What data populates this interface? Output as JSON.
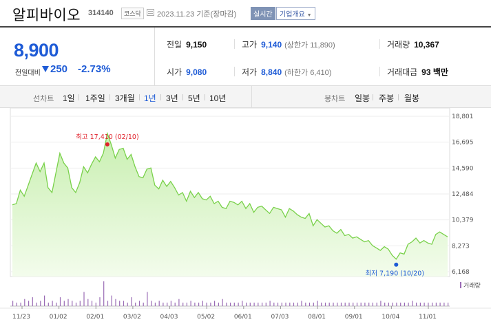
{
  "header": {
    "name": "알피바이오",
    "code": "314140",
    "market": "코스닥",
    "date": "2023.11.23",
    "basis": "기준(장마감)",
    "realtime_label": "실시간",
    "overview_label": "기업개요"
  },
  "price": {
    "current": "8,900",
    "change_label": "전일대비",
    "change": "250",
    "change_pct": "-2.73%"
  },
  "stats": {
    "prev_close_label": "전일",
    "prev_close": "9,150",
    "high_label": "고가",
    "high": "9,140",
    "upper_limit_label": "(상한가",
    "upper_limit": "11,890)",
    "volume_label": "거래량",
    "volume": "10,367",
    "open_label": "시가",
    "open": "9,080",
    "low_label": "저가",
    "low": "8,840",
    "lower_limit_label": "(하한가",
    "lower_limit": "6,410)",
    "amount_label": "거래대금",
    "amount": "93",
    "amount_unit": "백만"
  },
  "period": {
    "line_label": "선차트",
    "line_options": [
      "1일",
      "1주일",
      "3개월",
      "1년",
      "3년",
      "5년",
      "10년"
    ],
    "selected": "1년",
    "candle_label": "봉차트",
    "candle_options": [
      "일봉",
      "주봉",
      "월봉"
    ]
  },
  "colors": {
    "accent_blue": "#1e5bd6",
    "rise_red": "#e0202a",
    "line_green": "#79d14a",
    "fill_green": "#d9f5c7",
    "volume_bar": "#9a6bb5"
  },
  "chart_data": {
    "type": "area",
    "y_ticks": [
      "18,801",
      "16,695",
      "14,590",
      "12,484",
      "10,379",
      "8,273",
      "6,168"
    ],
    "ylim": [
      6168,
      18801
    ],
    "x_ticks": [
      "11/23",
      "01/02",
      "02/01",
      "03/02",
      "04/03",
      "05/02",
      "06/01",
      "07/03",
      "08/01",
      "09/01",
      "10/04",
      "11/01"
    ],
    "series": [
      {
        "values": [
          11600,
          11700,
          12800,
          12300,
          13200,
          14100,
          15000,
          14300,
          15000,
          13000,
          12600,
          14200,
          15800,
          15000,
          14600,
          13000,
          12600,
          13400,
          14700,
          14200,
          14900,
          15500,
          15100,
          15800,
          17410,
          16500,
          15400,
          16100,
          16200,
          15300,
          15700,
          14700,
          13900,
          13800,
          14500,
          14600,
          13200,
          12900,
          13600,
          13100,
          13500,
          13000,
          12400,
          12600,
          11900,
          12700,
          12200,
          12600,
          12100,
          12000,
          12300,
          11700,
          11900,
          11400,
          11300,
          11900,
          11800,
          11600,
          11900,
          11300,
          11700,
          11000,
          11400,
          11500,
          11200,
          10900,
          11400,
          11300,
          11200,
          10600,
          11300,
          11100,
          10800,
          10600,
          10500,
          10900,
          9900,
          10400,
          10100,
          9800,
          9900,
          9500,
          9300,
          9600,
          9100,
          9200,
          8900,
          9000,
          8800,
          8600,
          8700,
          8300,
          8100,
          7900,
          8200,
          8000,
          7500,
          7190,
          7700,
          7600,
          8400,
          8600,
          8900,
          8500,
          8700,
          8500,
          8400,
          9200,
          9400,
          9200,
          9000
        ]
      }
    ],
    "annotations": {
      "max_label": "최고 17,410 (02/10)",
      "min_label": "최저 7,190 (10/20)"
    },
    "volume_label": "거래량",
    "volume_values": [
      3,
      2,
      2,
      4,
      3,
      5,
      2,
      3,
      6,
      2,
      3,
      2,
      5,
      3,
      4,
      3,
      2,
      3,
      8,
      4,
      3,
      2,
      5,
      14,
      3,
      6,
      4,
      3,
      3,
      2,
      5,
      2,
      3,
      2,
      8,
      3,
      2,
      3,
      2,
      2,
      3,
      2,
      4,
      2,
      2,
      3,
      2,
      2,
      3,
      2,
      2,
      3,
      2,
      4,
      2,
      2,
      2,
      2,
      3,
      2,
      2,
      2,
      2,
      2,
      2,
      3,
      2,
      2,
      2,
      2,
      2,
      2,
      2,
      3,
      2,
      2,
      2,
      3,
      2,
      2,
      2,
      2,
      2,
      2,
      2,
      2,
      2,
      2,
      2,
      2,
      2,
      2,
      2,
      3,
      2,
      2,
      2,
      2,
      2,
      2,
      2,
      3,
      2,
      2,
      2,
      2,
      2,
      2,
      2,
      2,
      2
    ]
  }
}
